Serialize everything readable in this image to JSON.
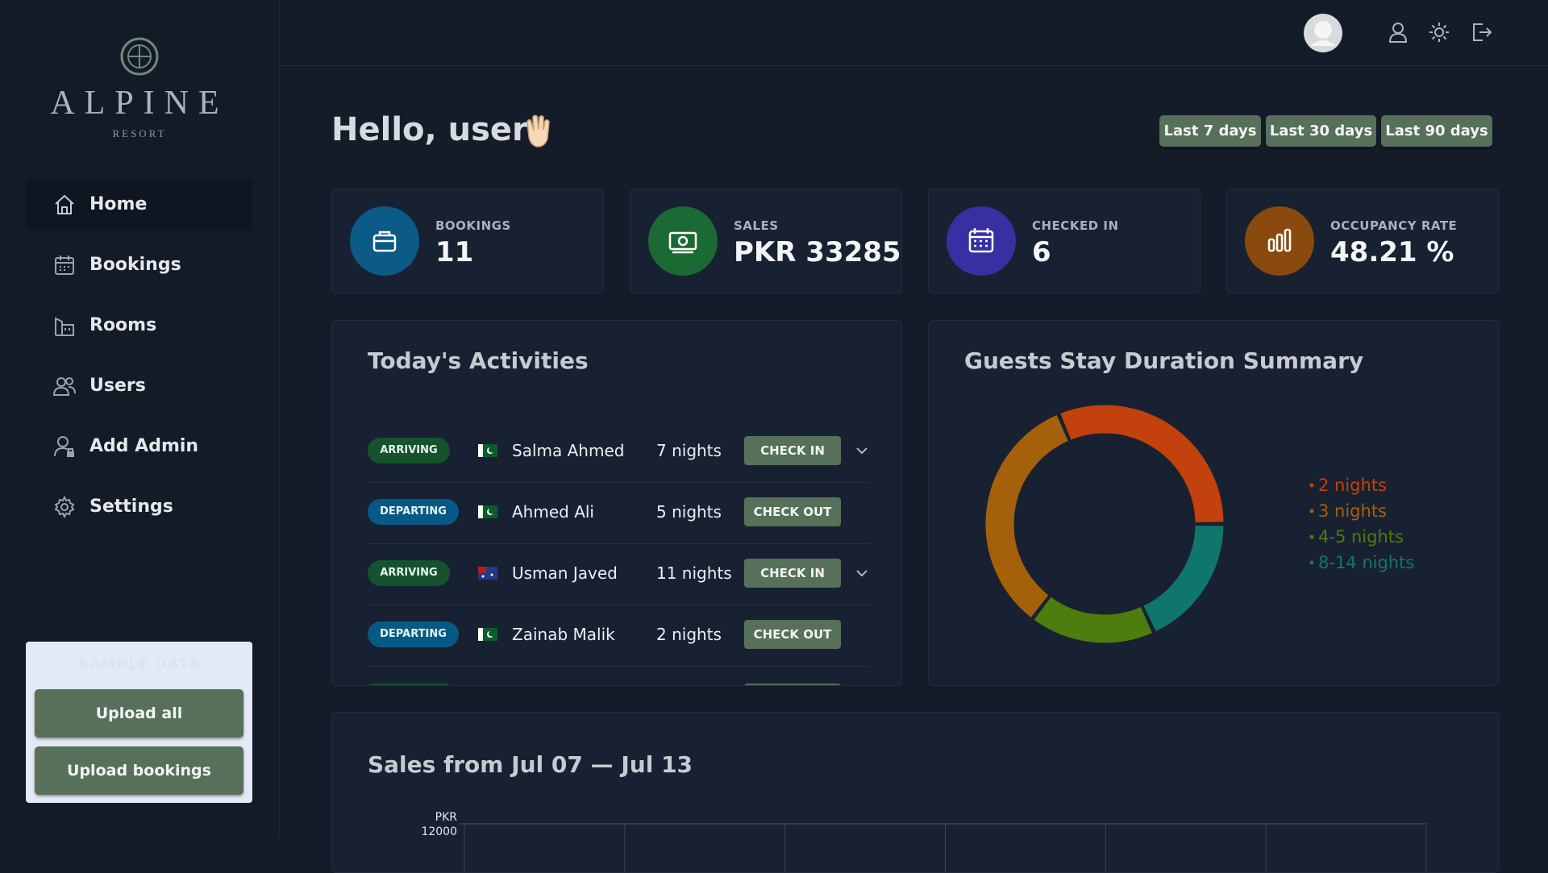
{
  "sidebar": {
    "logo": {
      "name": "ALPINE",
      "tagline": "RESORT"
    },
    "nav": [
      "Home",
      "Bookings",
      "Rooms",
      "Users",
      "Add Admin",
      "Settings"
    ]
  },
  "sample_panel": {
    "title": "SAMPLE DATA",
    "buttons": [
      "Upload all",
      "Upload bookings"
    ]
  },
  "greeting": "Hello, user!",
  "ranges": [
    "Last 7 days",
    "Last 30 days",
    "Last 90 days"
  ],
  "stats": [
    {
      "label": "BOOKINGS",
      "value": "11",
      "color": "#0c5a86"
    },
    {
      "label": "SALES",
      "value": "PKR 33285",
      "color": "#1b6a33"
    },
    {
      "label": "CHECKED IN",
      "value": "6",
      "color": "#3730a3"
    },
    {
      "label": "OCCUPANCY RATE",
      "value": "48.21 %",
      "color": "#8a4a0e"
    }
  ],
  "activities": {
    "title": "Today's Activities",
    "rows": [
      {
        "status": "ARRIVING",
        "status_color": "#14532d",
        "guest": "Salma Ahmed",
        "nights": "7 nights",
        "action": "CHECK IN"
      },
      {
        "status": "DEPARTING",
        "status_color": "#075985",
        "guest": "Ahmed Ali",
        "nights": "5 nights",
        "action": "CHECK OUT"
      },
      {
        "status": "ARRIVING",
        "status_color": "#14532d",
        "guest": "Usman Javed",
        "nights": "11 nights",
        "action": "CHECK IN"
      },
      {
        "status": "DEPARTING",
        "status_color": "#075985",
        "guest": "Zainab Malik",
        "nights": "2 nights",
        "action": "CHECK OUT"
      }
    ]
  },
  "stay_chart": {
    "type": "pie",
    "title": "Guests Stay Duration Summary",
    "categories": [
      "2 nights",
      "3 nights",
      "4-5 nights",
      "8-14 nights"
    ],
    "values": [
      31,
      33,
      17,
      18
    ],
    "colors": [
      "#c2410c",
      "#a5610a",
      "#4d7c0f",
      "#0f766e"
    ]
  },
  "sales_chart": {
    "type": "line",
    "title": "Sales from Jul 07 — Jul 13",
    "y_label": "PKR",
    "yticks": [
      12000
    ]
  }
}
